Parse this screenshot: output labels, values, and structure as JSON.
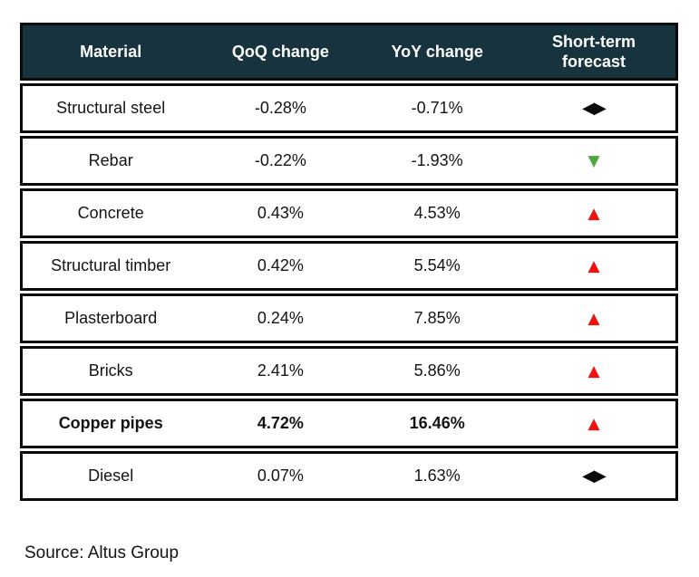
{
  "header": {
    "columns": [
      {
        "label": "Material"
      },
      {
        "label": "QoQ change"
      },
      {
        "label": "YoY change"
      },
      {
        "label": "Short-term forecast"
      }
    ]
  },
  "rows": [
    {
      "material": "Structural steel",
      "qoq": "-0.28%",
      "yoy": "-0.71%",
      "forecast": "neutral",
      "emphasis": false
    },
    {
      "material": "Rebar",
      "qoq": "-0.22%",
      "yoy": "-1.93%",
      "forecast": "down",
      "emphasis": false
    },
    {
      "material": "Concrete",
      "qoq": "0.43%",
      "yoy": "4.53%",
      "forecast": "up",
      "emphasis": false
    },
    {
      "material": "Structural timber",
      "qoq": "0.42%",
      "yoy": "5.54%",
      "forecast": "up",
      "emphasis": false
    },
    {
      "material": "Plasterboard",
      "qoq": "0.24%",
      "yoy": "7.85%",
      "forecast": "up",
      "emphasis": false
    },
    {
      "material": "Bricks",
      "qoq": "2.41%",
      "yoy": "5.86%",
      "forecast": "up",
      "emphasis": false
    },
    {
      "material": "Copper pipes",
      "qoq": "4.72%",
      "yoy": "16.46%",
      "forecast": "up",
      "emphasis": true
    },
    {
      "material": "Diesel",
      "qoq": "0.07%",
      "yoy": "1.63%",
      "forecast": "neutral",
      "emphasis": false
    }
  ],
  "icons": {
    "up": {
      "glyph": "▲",
      "color": "#F01111",
      "name": "up-triangle-icon"
    },
    "down": {
      "glyph": "▼",
      "color": "#4FA83D",
      "name": "down-triangle-icon"
    },
    "neutral": {
      "glyph": "◀▶",
      "color": "#0B0B0B",
      "name": "left-right-triangles-icon"
    }
  },
  "source": "Source: Altus Group",
  "colors": {
    "header_bg": "#17333E",
    "header_text": "#FFFFFF",
    "border": "#0A0A0A",
    "row_bg": "#FFFFFF",
    "text": "#141414",
    "up": "#F01111",
    "down": "#4FA83D",
    "neutral": "#0B0B0B"
  },
  "chart_data": {
    "type": "table",
    "columns": [
      "Material",
      "QoQ change",
      "YoY change",
      "Short-term forecast"
    ],
    "rows": [
      [
        "Structural steel",
        "-0.28%",
        "-0.71%",
        "sideways"
      ],
      [
        "Rebar",
        "-0.22%",
        "-1.93%",
        "down"
      ],
      [
        "Concrete",
        "0.43%",
        "4.53%",
        "up"
      ],
      [
        "Structural timber",
        "0.42%",
        "5.54%",
        "up"
      ],
      [
        "Plasterboard",
        "0.24%",
        "7.85%",
        "up"
      ],
      [
        "Bricks",
        "2.41%",
        "5.86%",
        "up"
      ],
      [
        "Copper pipes",
        "4.72%",
        "16.46%",
        "up"
      ],
      [
        "Diesel",
        "0.07%",
        "1.63%",
        "sideways"
      ]
    ],
    "source": "Source: Altus Group"
  }
}
